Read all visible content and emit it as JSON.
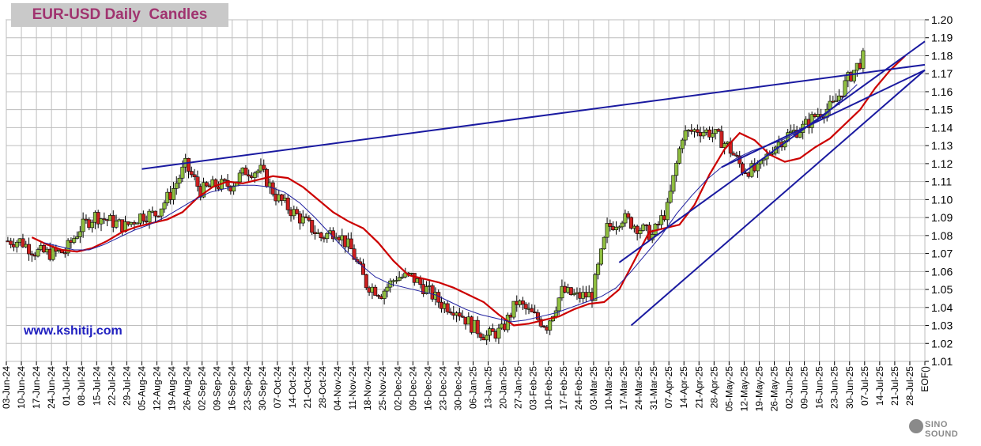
{
  "chart_data": {
    "type": "candlestick",
    "title": "EUR-USD Daily  Candles",
    "watermark": "www.kshitij.com",
    "logo_text": "SINO SOUND",
    "y_ticks": [
      "1.20",
      "1.19",
      "1.18",
      "1.17",
      "1.16",
      "1.15",
      "1.14",
      "1.13",
      "1.12",
      "1.11",
      "1.10",
      "1.09",
      "1.08",
      "1.07",
      "1.06",
      "1.05",
      "1.04",
      "1.03",
      "1.02",
      "1.01"
    ],
    "ylim": [
      1.01,
      1.2
    ],
    "x_ticks": [
      "03-Jun-24",
      "10-Jun-24",
      "17-Jun-24",
      "24-Jun-24",
      "01-Jul-24",
      "08-Jul-24",
      "15-Jul-24",
      "22-Jul-24",
      "29-Jul-24",
      "05-Aug-24",
      "12-Aug-24",
      "19-Aug-24",
      "26-Aug-24",
      "02-Sep-24",
      "09-Sep-24",
      "16-Sep-24",
      "23-Sep-24",
      "30-Sep-24",
      "07-Oct-24",
      "14-Oct-24",
      "21-Oct-24",
      "28-Oct-24",
      "04-Nov-24",
      "11-Nov-24",
      "18-Nov-24",
      "25-Nov-24",
      "02-Dec-24",
      "09-Dec-24",
      "16-Dec-24",
      "23-Dec-24",
      "30-Dec-24",
      "06-Jan-25",
      "13-Jan-25",
      "20-Jan-25",
      "27-Jan-25",
      "03-Feb-25",
      "10-Feb-25",
      "17-Feb-25",
      "24-Feb-25",
      "03-Mar-25",
      "10-Mar-25",
      "17-Mar-25",
      "24-Mar-25",
      "31-Mar-25",
      "07-Apr-25",
      "14-Apr-25",
      "21-Apr-25",
      "28-Apr-25",
      "05-May-25",
      "12-May-25",
      "19-May-25",
      "26-May-25",
      "02-Jun-25",
      "09-Jun-25",
      "16-Jun-25",
      "23-Jun-25",
      "30-Jun-25",
      "07-Jul-25",
      "14-Jul-25",
      "21-Jul-25",
      "28-Jul-25",
      "EOF()"
    ],
    "weekly_close": [
      1.077,
      1.071,
      1.07,
      1.071,
      1.084,
      1.091,
      1.088,
      1.085,
      1.091,
      1.092,
      1.103,
      1.119,
      1.105,
      1.108,
      1.108,
      1.116,
      1.116,
      1.102,
      1.094,
      1.087,
      1.079,
      1.083,
      1.072,
      1.053,
      1.048,
      1.057,
      1.057,
      1.05,
      1.042,
      1.039,
      1.03,
      1.024,
      1.027,
      1.043,
      1.036,
      1.03,
      1.049,
      1.046,
      1.047,
      1.084,
      1.09,
      1.085,
      1.08,
      1.095,
      1.136,
      1.139,
      1.137,
      1.13,
      1.117,
      1.116,
      1.129,
      1.136,
      1.14,
      1.148,
      1.152,
      1.167,
      1.179
    ],
    "series": [
      {
        "color": "#cc0000",
        "values": [
          1.079,
          1.075,
          1.072,
          1.071,
          1.073,
          1.077,
          1.082,
          1.085,
          1.087,
          1.089,
          1.093,
          1.101,
          1.107,
          1.11,
          1.109,
          1.111,
          1.113,
          1.112,
          1.107,
          1.1,
          1.093,
          1.088,
          1.084,
          1.076,
          1.066,
          1.058,
          1.056,
          1.054,
          1.051,
          1.047,
          1.043,
          1.036,
          1.03,
          1.031,
          1.033,
          1.035,
          1.039,
          1.042,
          1.043,
          1.05,
          1.066,
          1.082,
          1.084,
          1.086,
          1.097,
          1.114,
          1.128,
          1.137,
          1.133,
          1.125,
          1.121,
          1.123,
          1.129,
          1.134,
          1.142,
          1.15,
          1.162,
          1.172,
          1.18
        ]
      },
      {
        "color": "#2020a0",
        "values": [
          1.076,
          1.074,
          1.072,
          1.072,
          1.075,
          1.079,
          1.083,
          1.086,
          1.09,
          1.095,
          1.1,
          1.104,
          1.106,
          1.108,
          1.108,
          1.107,
          1.104,
          1.098,
          1.09,
          1.081,
          1.072,
          1.064,
          1.057,
          1.053,
          1.051,
          1.049,
          1.047,
          1.043,
          1.039,
          1.036,
          1.034,
          1.032,
          1.033,
          1.035,
          1.037,
          1.04,
          1.043,
          1.046,
          1.051,
          1.06,
          1.07,
          1.08,
          1.092,
          1.102,
          1.111,
          1.118,
          1.123,
          1.127,
          1.13,
          1.133,
          1.137,
          1.142,
          1.148,
          1.156,
          1.164
        ]
      }
    ]
  }
}
